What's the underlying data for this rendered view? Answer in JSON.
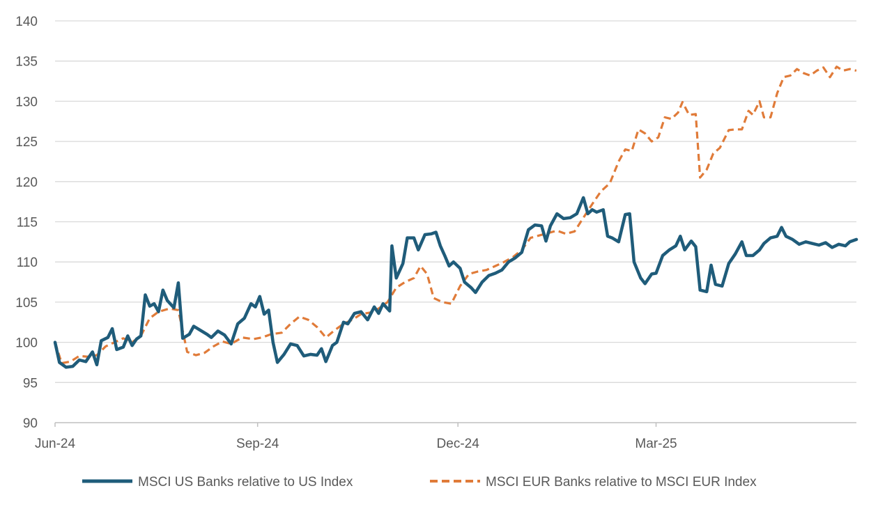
{
  "chart_data": {
    "type": "line",
    "title": "",
    "xlabel": "",
    "ylabel": "",
    "ylim": [
      90,
      140
    ],
    "yticks": [
      90,
      95,
      100,
      105,
      110,
      115,
      120,
      125,
      130,
      135,
      140
    ],
    "xticks": [
      {
        "label": "Jun-24",
        "x": "2024-06-01"
      },
      {
        "label": "Sep-24",
        "x": "2024-09-01"
      },
      {
        "label": "Dec-24",
        "x": "2024-12-01"
      },
      {
        "label": "Mar-25",
        "x": "2025-03-01"
      }
    ],
    "xrange": [
      "2024-06-01",
      "2025-05-31"
    ],
    "grid": true,
    "legend": "bottom",
    "series": [
      {
        "name": "MSCI US Banks relative to US Index",
        "color": "#1f5c7a",
        "style": "solid",
        "points": [
          [
            "2024-06-01",
            100.0
          ],
          [
            "2024-06-03",
            97.5
          ],
          [
            "2024-06-06",
            96.9
          ],
          [
            "2024-06-09",
            97.0
          ],
          [
            "2024-06-12",
            97.8
          ],
          [
            "2024-06-15",
            97.6
          ],
          [
            "2024-06-18",
            98.8
          ],
          [
            "2024-06-20",
            97.2
          ],
          [
            "2024-06-22",
            100.2
          ],
          [
            "2024-06-25",
            100.6
          ],
          [
            "2024-06-27",
            101.7
          ],
          [
            "2024-06-29",
            99.1
          ],
          [
            "2024-07-02",
            99.4
          ],
          [
            "2024-07-04",
            100.8
          ],
          [
            "2024-07-06",
            99.6
          ],
          [
            "2024-07-08",
            100.4
          ],
          [
            "2024-07-10",
            100.8
          ],
          [
            "2024-07-12",
            105.9
          ],
          [
            "2024-07-14",
            104.5
          ],
          [
            "2024-07-16",
            104.8
          ],
          [
            "2024-07-18",
            103.8
          ],
          [
            "2024-07-20",
            106.5
          ],
          [
            "2024-07-22",
            105.2
          ],
          [
            "2024-07-25",
            104.3
          ],
          [
            "2024-07-27",
            107.4
          ],
          [
            "2024-07-29",
            100.5
          ],
          [
            "2024-08-01",
            101.0
          ],
          [
            "2024-08-03",
            102.0
          ],
          [
            "2024-08-06",
            101.5
          ],
          [
            "2024-08-09",
            101.0
          ],
          [
            "2024-08-11",
            100.6
          ],
          [
            "2024-08-14",
            101.4
          ],
          [
            "2024-08-17",
            100.9
          ],
          [
            "2024-08-20",
            99.8
          ],
          [
            "2024-08-23",
            102.3
          ],
          [
            "2024-08-26",
            103.0
          ],
          [
            "2024-08-29",
            104.8
          ],
          [
            "2024-08-31",
            104.4
          ],
          [
            "2024-09-02",
            105.7
          ],
          [
            "2024-09-04",
            103.5
          ],
          [
            "2024-09-06",
            104.0
          ],
          [
            "2024-09-08",
            100.0
          ],
          [
            "2024-09-10",
            97.5
          ],
          [
            "2024-09-13",
            98.5
          ],
          [
            "2024-09-16",
            99.8
          ],
          [
            "2024-09-19",
            99.6
          ],
          [
            "2024-09-22",
            98.3
          ],
          [
            "2024-09-25",
            98.5
          ],
          [
            "2024-09-28",
            98.4
          ],
          [
            "2024-09-30",
            99.2
          ],
          [
            "2024-10-02",
            97.6
          ],
          [
            "2024-10-05",
            99.6
          ],
          [
            "2024-10-07",
            100.0
          ],
          [
            "2024-10-10",
            102.5
          ],
          [
            "2024-10-12",
            102.3
          ],
          [
            "2024-10-15",
            103.6
          ],
          [
            "2024-10-18",
            103.8
          ],
          [
            "2024-10-21",
            102.8
          ],
          [
            "2024-10-24",
            104.4
          ],
          [
            "2024-10-26",
            103.6
          ],
          [
            "2024-10-28",
            104.8
          ],
          [
            "2024-10-31",
            103.9
          ],
          [
            "2024-11-01",
            112.0
          ],
          [
            "2024-11-03",
            108.0
          ],
          [
            "2024-11-06",
            109.8
          ],
          [
            "2024-11-08",
            113.0
          ],
          [
            "2024-11-11",
            113.0
          ],
          [
            "2024-11-13",
            111.5
          ],
          [
            "2024-11-16",
            113.4
          ],
          [
            "2024-11-19",
            113.5
          ],
          [
            "2024-11-21",
            113.7
          ],
          [
            "2024-11-23",
            112.0
          ],
          [
            "2024-11-25",
            110.8
          ],
          [
            "2024-11-27",
            109.5
          ],
          [
            "2024-11-29",
            110.0
          ],
          [
            "2024-12-02",
            109.2
          ],
          [
            "2024-12-04",
            107.5
          ],
          [
            "2024-12-07",
            106.8
          ],
          [
            "2024-12-09",
            106.2
          ],
          [
            "2024-12-12",
            107.5
          ],
          [
            "2024-12-15",
            108.3
          ],
          [
            "2024-12-18",
            108.6
          ],
          [
            "2024-12-21",
            109.0
          ],
          [
            "2024-12-24",
            110.0
          ],
          [
            "2024-12-27",
            110.5
          ],
          [
            "2024-12-30",
            111.2
          ],
          [
            "2025-01-02",
            114.0
          ],
          [
            "2025-01-05",
            114.6
          ],
          [
            "2025-01-08",
            114.5
          ],
          [
            "2025-01-10",
            112.6
          ],
          [
            "2025-01-12",
            114.5
          ],
          [
            "2025-01-15",
            116.0
          ],
          [
            "2025-01-18",
            115.4
          ],
          [
            "2025-01-21",
            115.5
          ],
          [
            "2025-01-24",
            116.0
          ],
          [
            "2025-01-27",
            118.0
          ],
          [
            "2025-01-29",
            116.0
          ],
          [
            "2025-01-31",
            116.5
          ],
          [
            "2025-02-02",
            116.2
          ],
          [
            "2025-02-05",
            116.5
          ],
          [
            "2025-02-07",
            113.2
          ],
          [
            "2025-02-09",
            113.0
          ],
          [
            "2025-02-12",
            112.5
          ],
          [
            "2025-02-15",
            115.9
          ],
          [
            "2025-02-17",
            116.0
          ],
          [
            "2025-02-19",
            110.0
          ],
          [
            "2025-02-22",
            108.0
          ],
          [
            "2025-02-24",
            107.3
          ],
          [
            "2025-02-27",
            108.5
          ],
          [
            "2025-03-01",
            108.6
          ],
          [
            "2025-03-04",
            110.8
          ],
          [
            "2025-03-07",
            111.5
          ],
          [
            "2025-03-10",
            112.0
          ],
          [
            "2025-03-12",
            113.2
          ],
          [
            "2025-03-14",
            111.5
          ],
          [
            "2025-03-17",
            112.6
          ],
          [
            "2025-03-19",
            111.9
          ],
          [
            "2025-03-21",
            106.5
          ],
          [
            "2025-03-24",
            106.3
          ],
          [
            "2025-03-26",
            109.6
          ],
          [
            "2025-03-28",
            107.2
          ],
          [
            "2025-03-31",
            107.0
          ],
          [
            "2025-04-03",
            109.8
          ],
          [
            "2025-04-06",
            111.0
          ],
          [
            "2025-04-09",
            112.5
          ],
          [
            "2025-04-11",
            110.8
          ],
          [
            "2025-04-14",
            110.8
          ],
          [
            "2025-04-17",
            111.5
          ],
          [
            "2025-04-19",
            112.3
          ],
          [
            "2025-04-22",
            113.0
          ],
          [
            "2025-04-25",
            113.2
          ],
          [
            "2025-04-27",
            114.3
          ],
          [
            "2025-04-29",
            113.2
          ],
          [
            "2025-05-02",
            112.8
          ],
          [
            "2025-05-05",
            112.2
          ],
          [
            "2025-05-08",
            112.5
          ],
          [
            "2025-05-11",
            112.3
          ],
          [
            "2025-05-14",
            112.1
          ],
          [
            "2025-05-17",
            112.4
          ],
          [
            "2025-05-20",
            111.8
          ],
          [
            "2025-05-23",
            112.2
          ],
          [
            "2025-05-26",
            112.0
          ],
          [
            "2025-05-28",
            112.5
          ],
          [
            "2025-05-31",
            112.8
          ]
        ]
      },
      {
        "name": "MSCI EUR Banks relative to MSCI EUR Index",
        "color": "#e07b39",
        "style": "dashed",
        "points": [
          [
            "2024-06-01",
            100.0
          ],
          [
            "2024-06-04",
            97.4
          ],
          [
            "2024-06-08",
            97.6
          ],
          [
            "2024-06-12",
            98.3
          ],
          [
            "2024-06-16",
            98.2
          ],
          [
            "2024-06-20",
            98.4
          ],
          [
            "2024-06-24",
            99.5
          ],
          [
            "2024-06-28",
            100.0
          ],
          [
            "2024-07-02",
            100.5
          ],
          [
            "2024-07-06",
            100.0
          ],
          [
            "2024-07-10",
            100.8
          ],
          [
            "2024-07-14",
            103.0
          ],
          [
            "2024-07-18",
            103.8
          ],
          [
            "2024-07-23",
            104.2
          ],
          [
            "2024-07-27",
            104.0
          ],
          [
            "2024-07-31",
            98.8
          ],
          [
            "2024-08-04",
            98.4
          ],
          [
            "2024-08-08",
            98.7
          ],
          [
            "2024-08-12",
            99.5
          ],
          [
            "2024-08-16",
            100.1
          ],
          [
            "2024-08-20",
            99.8
          ],
          [
            "2024-08-25",
            100.6
          ],
          [
            "2024-08-30",
            100.4
          ],
          [
            "2024-09-03",
            100.6
          ],
          [
            "2024-09-07",
            101.0
          ],
          [
            "2024-09-12",
            101.2
          ],
          [
            "2024-09-16",
            102.3
          ],
          [
            "2024-09-20",
            103.2
          ],
          [
            "2024-09-24",
            102.8
          ],
          [
            "2024-09-28",
            101.9
          ],
          [
            "2024-10-02",
            100.6
          ],
          [
            "2024-10-06",
            101.5
          ],
          [
            "2024-10-10",
            102.3
          ],
          [
            "2024-10-14",
            102.8
          ],
          [
            "2024-10-18",
            103.5
          ],
          [
            "2024-10-22",
            103.7
          ],
          [
            "2024-10-26",
            104.2
          ],
          [
            "2024-10-30",
            105.0
          ],
          [
            "2024-11-03",
            106.8
          ],
          [
            "2024-11-07",
            107.5
          ],
          [
            "2024-11-11",
            108.0
          ],
          [
            "2024-11-14",
            109.5
          ],
          [
            "2024-11-17",
            108.5
          ],
          [
            "2024-11-20",
            105.5
          ],
          [
            "2024-11-24",
            105.0
          ],
          [
            "2024-11-28",
            104.8
          ],
          [
            "2024-12-02",
            107.0
          ],
          [
            "2024-12-06",
            108.5
          ],
          [
            "2024-12-10",
            108.8
          ],
          [
            "2024-12-14",
            109.0
          ],
          [
            "2024-12-18",
            109.5
          ],
          [
            "2024-12-22",
            110.0
          ],
          [
            "2024-12-26",
            110.6
          ],
          [
            "2024-12-30",
            111.5
          ],
          [
            "2025-01-03",
            113.0
          ],
          [
            "2025-01-07",
            113.3
          ],
          [
            "2025-01-11",
            113.6
          ],
          [
            "2025-01-15",
            113.9
          ],
          [
            "2025-01-19",
            113.5
          ],
          [
            "2025-01-23",
            113.8
          ],
          [
            "2025-01-27",
            115.5
          ],
          [
            "2025-01-31",
            117.2
          ],
          [
            "2025-02-04",
            118.8
          ],
          [
            "2025-02-08",
            119.8
          ],
          [
            "2025-02-12",
            122.5
          ],
          [
            "2025-02-15",
            124.0
          ],
          [
            "2025-02-18",
            123.8
          ],
          [
            "2025-02-21",
            126.5
          ],
          [
            "2025-02-24",
            126.0
          ],
          [
            "2025-02-27",
            125.0
          ],
          [
            "2025-03-02",
            125.5
          ],
          [
            "2025-03-05",
            128.0
          ],
          [
            "2025-03-08",
            127.8
          ],
          [
            "2025-03-11",
            128.6
          ],
          [
            "2025-03-13",
            129.9
          ],
          [
            "2025-03-16",
            128.3
          ],
          [
            "2025-03-19",
            128.4
          ],
          [
            "2025-03-21",
            120.5
          ],
          [
            "2025-03-24",
            121.5
          ],
          [
            "2025-03-27",
            123.5
          ],
          [
            "2025-03-30",
            124.2
          ],
          [
            "2025-04-03",
            126.4
          ],
          [
            "2025-04-06",
            126.5
          ],
          [
            "2025-04-09",
            126.5
          ],
          [
            "2025-04-12",
            128.8
          ],
          [
            "2025-04-14",
            128.3
          ],
          [
            "2025-04-17",
            130.0
          ],
          [
            "2025-04-19",
            128.0
          ],
          [
            "2025-04-22",
            128.0
          ],
          [
            "2025-04-25",
            131.0
          ],
          [
            "2025-04-28",
            133.0
          ],
          [
            "2025-05-01",
            133.2
          ],
          [
            "2025-05-04",
            134.0
          ],
          [
            "2025-05-07",
            133.5
          ],
          [
            "2025-05-10",
            133.2
          ],
          [
            "2025-05-13",
            133.8
          ],
          [
            "2025-05-16",
            134.2
          ],
          [
            "2025-05-19",
            133.0
          ],
          [
            "2025-05-22",
            134.3
          ],
          [
            "2025-05-25",
            133.8
          ],
          [
            "2025-05-28",
            134.0
          ],
          [
            "2025-05-31",
            133.8
          ]
        ]
      }
    ]
  }
}
